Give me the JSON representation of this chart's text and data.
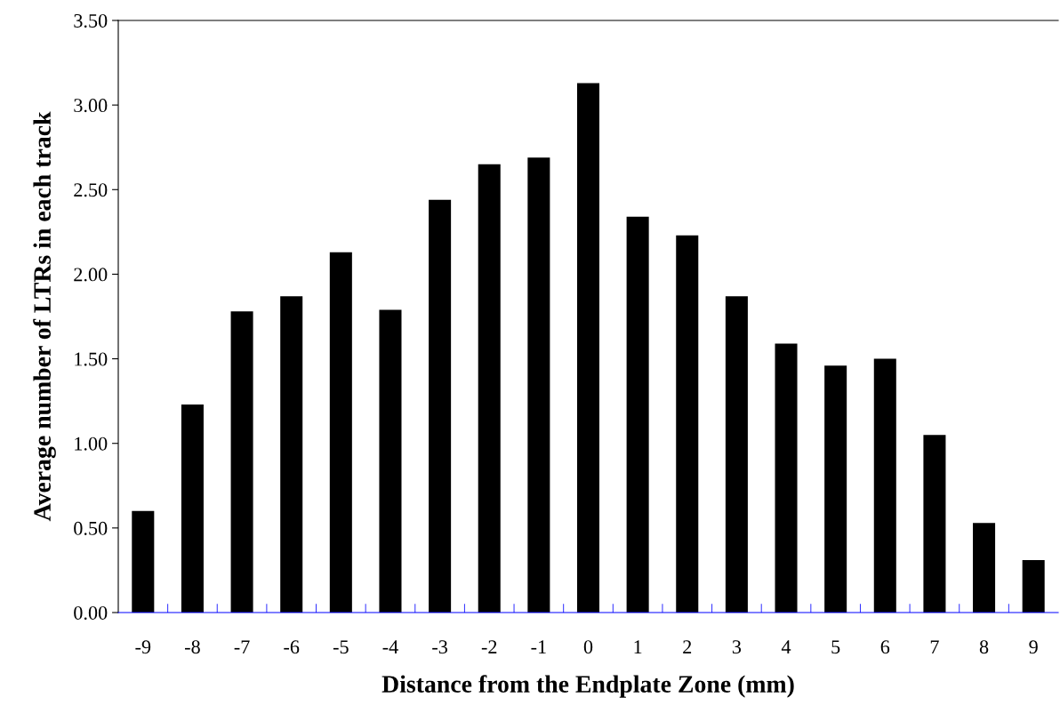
{
  "chart_data": {
    "type": "bar",
    "xlabel": "Distance from the Endplate Zone (mm)",
    "ylabel": "Average number of LTRs in each track",
    "categories": [
      "-9",
      "-8",
      "-7",
      "-6",
      "-5",
      "-4",
      "-3",
      "-2",
      "-1",
      "0",
      "1",
      "2",
      "3",
      "4",
      "5",
      "6",
      "7",
      "8",
      "9"
    ],
    "values": [
      0.6,
      1.23,
      1.78,
      1.87,
      2.13,
      1.79,
      2.44,
      2.65,
      2.69,
      3.13,
      2.34,
      2.23,
      1.87,
      1.59,
      1.46,
      1.5,
      1.05,
      0.53,
      0.31
    ],
    "color": "#000000",
    "ylim": [
      0,
      3.5
    ],
    "yticks": [
      {
        "value": 0,
        "label": "0.00"
      },
      {
        "value": 0.5,
        "label": "0.50"
      },
      {
        "value": 1,
        "label": "1.00"
      },
      {
        "value": 1.5,
        "label": "1.50"
      },
      {
        "value": 2,
        "label": "2.00"
      },
      {
        "value": 2.5,
        "label": "2.50"
      },
      {
        "value": 3,
        "label": "3.00"
      },
      {
        "value": 3.5,
        "label": "3.50"
      }
    ],
    "grid": false,
    "legend": false
  }
}
